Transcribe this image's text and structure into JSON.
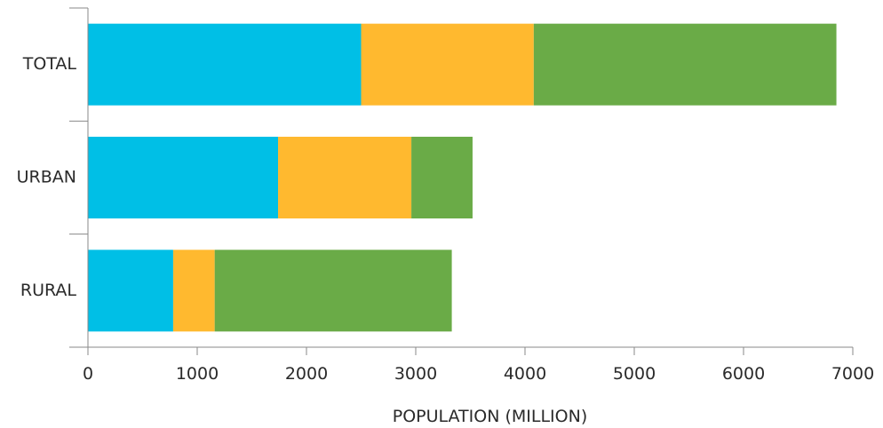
{
  "chart_data": {
    "type": "bar",
    "orientation": "horizontal",
    "stacked": true,
    "categories": [
      "TOTAL",
      "URBAN",
      "RURAL"
    ],
    "series": [
      {
        "color": "#00bfe6",
        "values": [
          2500,
          1740,
          780
        ]
      },
      {
        "color": "#ffb92f",
        "values": [
          1580,
          1220,
          380
        ]
      },
      {
        "color": "#6aab47",
        "values": [
          2770,
          560,
          2170
        ]
      }
    ],
    "xlabel": "POPULATION (MILLION)",
    "ylabel": "",
    "xlim": [
      0,
      7000
    ],
    "xticks": [
      0,
      1000,
      2000,
      3000,
      4000,
      5000,
      6000,
      7000
    ],
    "grid": false,
    "legend": "none"
  }
}
